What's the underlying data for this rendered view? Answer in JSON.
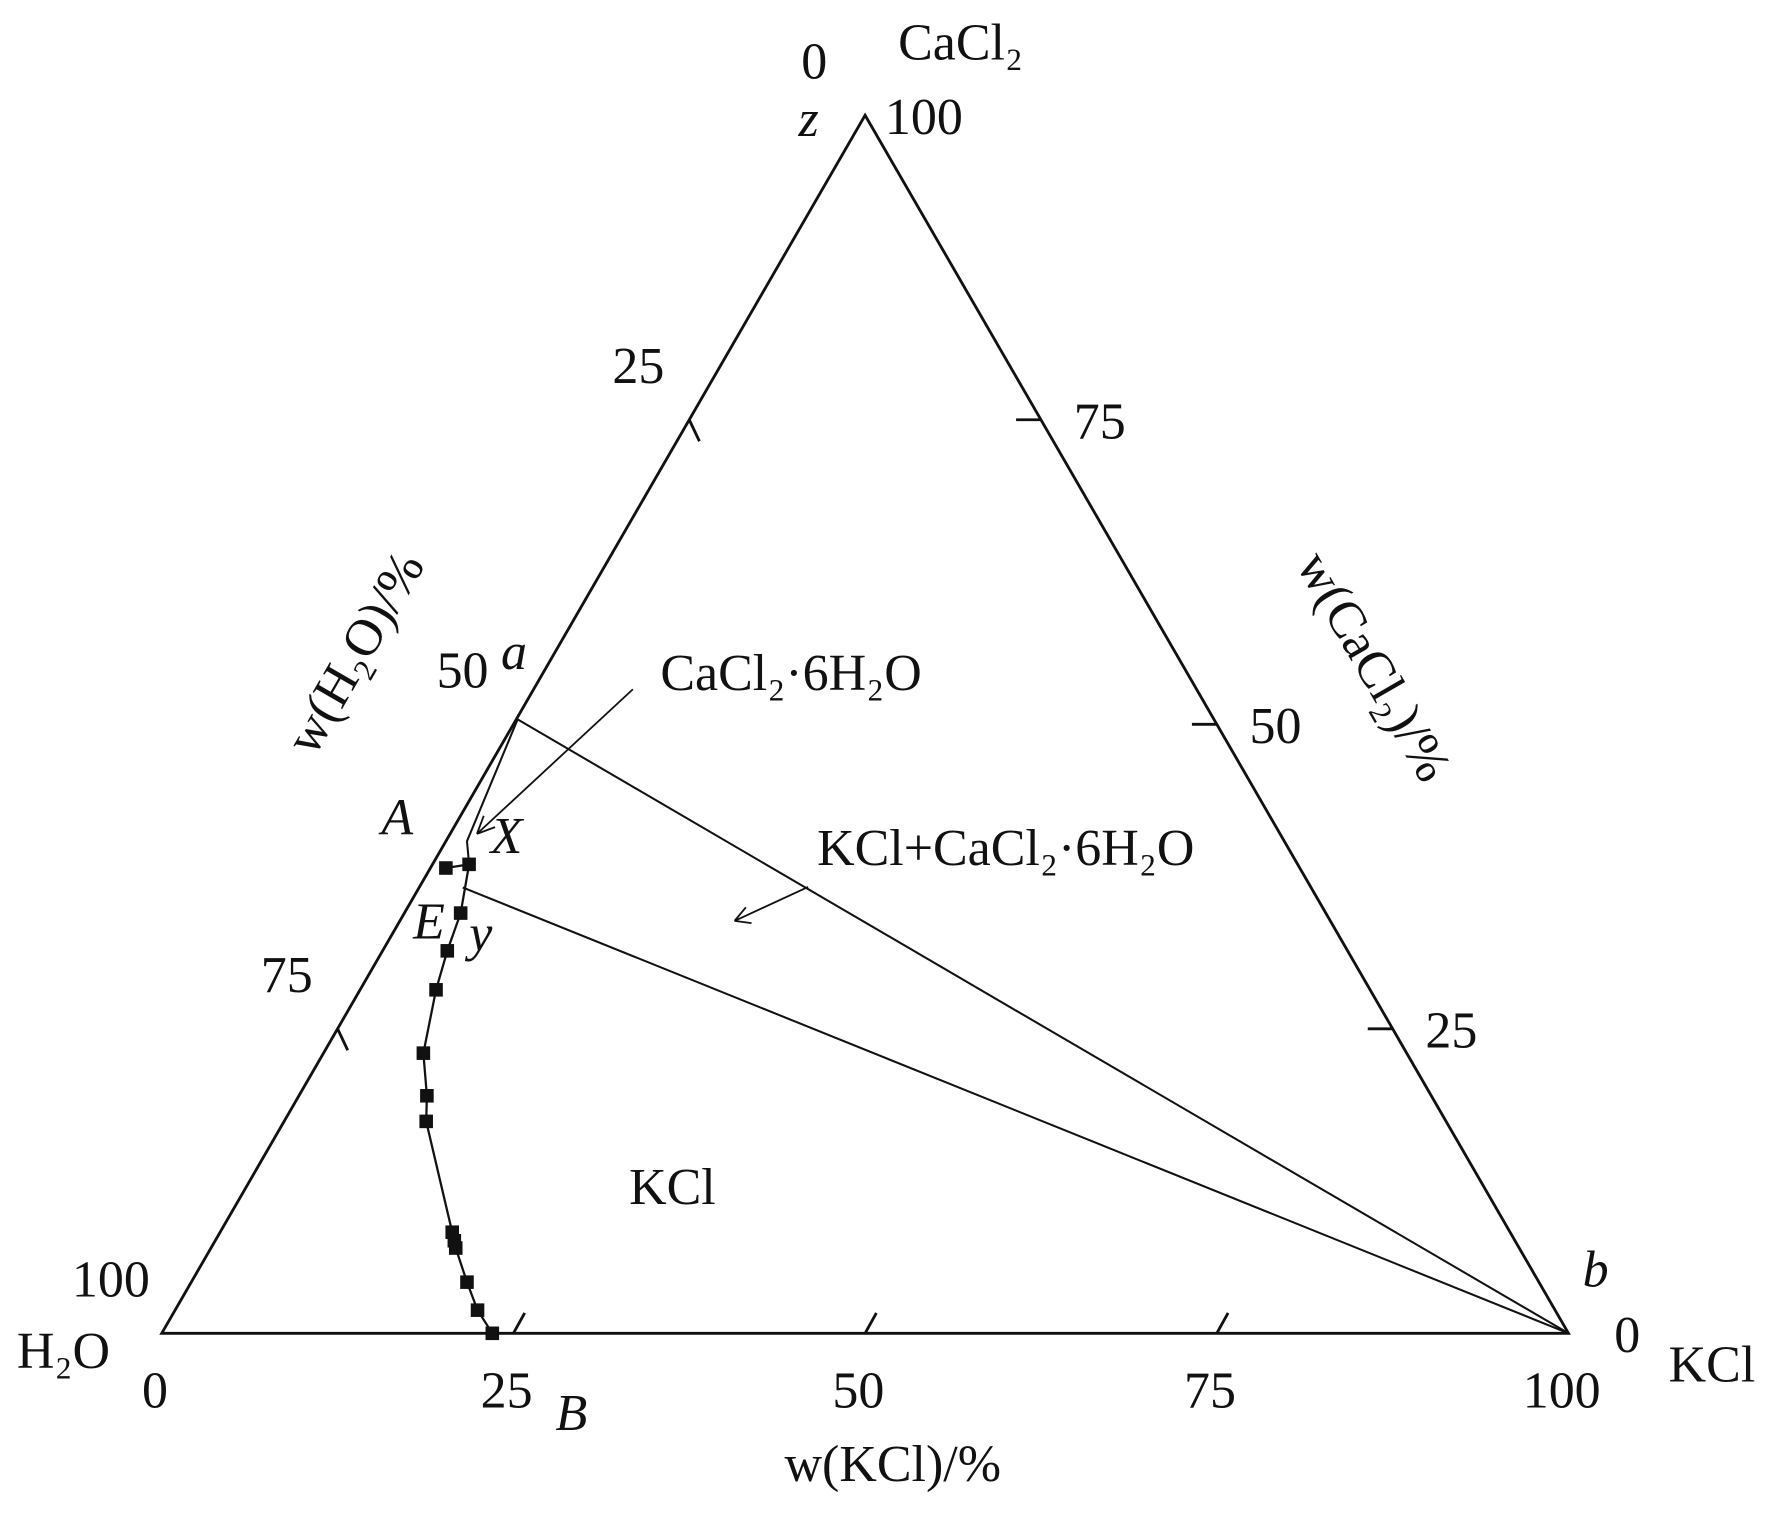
{
  "chart_data": {
    "type": "ternary",
    "vertices": {
      "left": "H₂O",
      "right": "KCl",
      "top": "CaCl₂"
    },
    "axis_titles": {
      "bottom": "w(KCl)/%",
      "left": "w(H₂O)/%",
      "right": "w(CaCl₂)/%"
    },
    "bottom_ticks": [
      0,
      25,
      50,
      75,
      100
    ],
    "left_ticks": [
      0,
      25,
      50,
      75,
      100
    ],
    "right_ticks": [
      0,
      25,
      50,
      75,
      100
    ],
    "color": "#111111",
    "solubility_curve": {
      "KCl": [
        23.5,
        21.5,
        19.6,
        17.4,
        17.0,
        16.5,
        10.1,
        9.1,
        7.1,
        5.4,
        4.6,
        4.0,
        2.6,
        1.1
      ],
      "CaCl2": [
        0,
        1.9,
        4.2,
        7.0,
        7.6,
        8.3,
        17.4,
        19.5,
        23.0,
        28.2,
        31.4,
        34.5,
        38.5,
        38.2
      ]
    },
    "lines": [
      {
        "KCl": [
          0.1,
          1.5,
          2.6
        ],
        "CaCl2": [
          50.4,
          40.4,
          38.5
        ]
      },
      {
        "KCl": [
          100,
          0.1
        ],
        "CaCl2": [
          0,
          50.4
        ]
      },
      {
        "KCl": [
          100,
          3.1
        ],
        "CaCl2": [
          0,
          36.6
        ]
      }
    ],
    "points": [
      {
        "label": "z",
        "KCl": 0,
        "CaCl2": 100
      },
      {
        "label": "a",
        "KCl": 0,
        "CaCl2": 50.4
      },
      {
        "label": "A",
        "KCl": 1.1,
        "CaCl2": 38.2
      },
      {
        "label": "X",
        "KCl": 1.5,
        "CaCl2": 40.4
      },
      {
        "label": "E",
        "KCl": 4.0,
        "CaCl2": 34.5
      },
      {
        "label": "y",
        "KCl": 3.1,
        "CaCl2": 36.6
      },
      {
        "label": "B",
        "KCl": 23.5,
        "CaCl2": 0
      },
      {
        "label": "b",
        "KCl": 100,
        "CaCl2": 0
      }
    ],
    "regions": [
      "CaCl₂·6H₂O",
      "KCl+CaCl₂·6H₂O",
      "KCl"
    ]
  }
}
